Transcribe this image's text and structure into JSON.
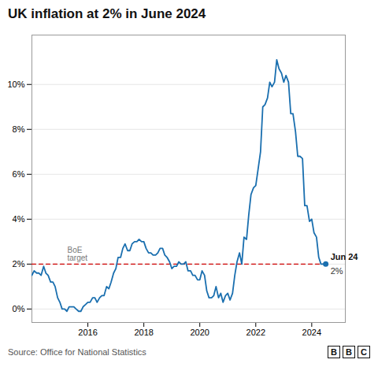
{
  "chart_data": {
    "type": "line",
    "title": "UK inflation at 2% in June 2024",
    "source": "Source: Office for National Statistics",
    "logo": "BBC",
    "color": "#1a6faf",
    "x": [
      2014.0,
      2014.08,
      2014.17,
      2014.25,
      2014.33,
      2014.42,
      2014.5,
      2014.58,
      2014.67,
      2014.75,
      2014.83,
      2014.92,
      2015.0,
      2015.08,
      2015.17,
      2015.25,
      2015.33,
      2015.42,
      2015.5,
      2015.58,
      2015.67,
      2015.75,
      2015.83,
      2015.92,
      2016.0,
      2016.08,
      2016.17,
      2016.25,
      2016.33,
      2016.42,
      2016.5,
      2016.58,
      2016.67,
      2016.75,
      2016.83,
      2016.92,
      2017.0,
      2017.08,
      2017.17,
      2017.25,
      2017.33,
      2017.42,
      2017.5,
      2017.58,
      2017.67,
      2017.75,
      2017.83,
      2017.92,
      2018.0,
      2018.08,
      2018.17,
      2018.25,
      2018.33,
      2018.42,
      2018.5,
      2018.58,
      2018.67,
      2018.75,
      2018.83,
      2018.92,
      2019.0,
      2019.08,
      2019.17,
      2019.25,
      2019.33,
      2019.42,
      2019.5,
      2019.58,
      2019.67,
      2019.75,
      2019.83,
      2019.92,
      2020.0,
      2020.08,
      2020.17,
      2020.25,
      2020.33,
      2020.42,
      2020.5,
      2020.58,
      2020.67,
      2020.75,
      2020.83,
      2020.92,
      2021.0,
      2021.08,
      2021.17,
      2021.25,
      2021.33,
      2021.42,
      2021.5,
      2021.58,
      2021.67,
      2021.75,
      2021.83,
      2021.92,
      2022.0,
      2022.08,
      2022.17,
      2022.25,
      2022.33,
      2022.42,
      2022.5,
      2022.58,
      2022.67,
      2022.75,
      2022.83,
      2022.92,
      2023.0,
      2023.08,
      2023.17,
      2023.25,
      2023.33,
      2023.42,
      2023.5,
      2023.58,
      2023.67,
      2023.75,
      2023.83,
      2023.92,
      2024.0,
      2024.08,
      2024.17,
      2024.25,
      2024.33,
      2024.5
    ],
    "values": [
      1.5,
      1.7,
      1.6,
      1.6,
      1.5,
      1.9,
      1.6,
      1.5,
      1.2,
      1.2,
      1.0,
      0.5,
      0.3,
      0.0,
      0.0,
      -0.1,
      0.1,
      0.1,
      0.1,
      0.0,
      -0.1,
      -0.1,
      0.1,
      0.2,
      0.3,
      0.3,
      0.5,
      0.5,
      0.3,
      0.5,
      0.6,
      0.6,
      1.0,
      0.9,
      1.2,
      1.6,
      1.8,
      2.3,
      2.3,
      2.7,
      2.9,
      2.6,
      2.6,
      2.9,
      3.0,
      3.0,
      3.1,
      3.0,
      3.0,
      2.7,
      2.5,
      2.5,
      2.4,
      2.4,
      2.5,
      2.7,
      2.7,
      2.4,
      2.3,
      2.1,
      1.8,
      1.9,
      1.9,
      2.1,
      2.0,
      2.0,
      2.1,
      1.7,
      1.7,
      1.5,
      1.5,
      1.3,
      1.3,
      1.7,
      1.5,
      0.8,
      0.5,
      0.5,
      0.6,
      1.0,
      0.5,
      0.7,
      0.3,
      0.6,
      0.7,
      0.4,
      0.7,
      1.5,
      2.1,
      2.5,
      2.0,
      3.2,
      3.1,
      4.2,
      5.1,
      5.4,
      5.5,
      6.2,
      7.0,
      9.0,
      9.1,
      9.4,
      10.1,
      9.9,
      10.1,
      11.1,
      10.7,
      10.5,
      10.1,
      10.4,
      10.1,
      8.7,
      8.7,
      7.9,
      6.8,
      6.8,
      6.7,
      4.6,
      4.6,
      3.9,
      4.0,
      3.4,
      3.2,
      2.3,
      2.0,
      2.0
    ],
    "reference_line": {
      "value": 2.0,
      "color": "#cc0000",
      "line_style": "dashed",
      "label_lines": [
        "BoE",
        "target"
      ]
    },
    "end_label_lines": [
      "Jun 24",
      "2%"
    ],
    "xlim": [
      2014.0,
      2025.2
    ],
    "xticks": [
      2016,
      2018,
      2020,
      2022,
      2024
    ],
    "ylim": [
      -0.6,
      12.2
    ],
    "yticks": [
      {
        "value": 0,
        "label": "0%"
      },
      {
        "value": 2,
        "label": "2%"
      },
      {
        "value": 4,
        "label": "4%"
      },
      {
        "value": 6,
        "label": "6%"
      },
      {
        "value": 8,
        "label": "8%"
      },
      {
        "value": 10,
        "label": "10%"
      }
    ],
    "grid": true
  }
}
